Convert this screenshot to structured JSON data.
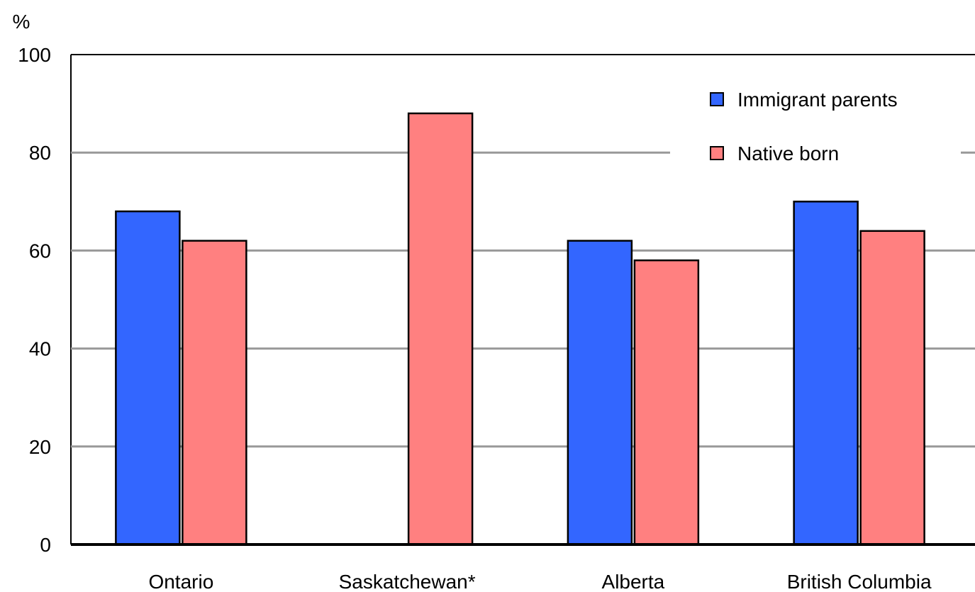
{
  "chart_data": {
    "type": "bar",
    "ylabel": "%",
    "ylim": [
      0,
      100
    ],
    "yticks": [
      "0",
      "20",
      "40",
      "60",
      "80",
      "100"
    ],
    "grid": true,
    "legend_position": "top-right",
    "categories": [
      "Ontario",
      "Saskatchewan*",
      "Alberta",
      "British Columbia"
    ],
    "series": [
      {
        "name": "Immigrant parents",
        "color": "#3366ff",
        "values": [
          68,
          null,
          62,
          70
        ]
      },
      {
        "name": "Native born",
        "color": "#ff8080",
        "values": [
          62,
          88,
          58,
          64
        ]
      }
    ]
  }
}
